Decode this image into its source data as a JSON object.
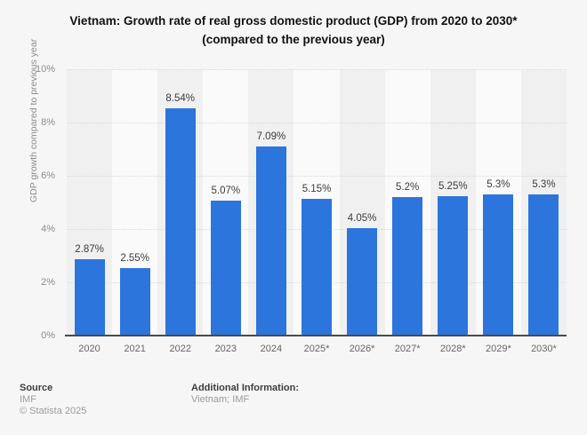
{
  "title": {
    "line1": "Vietnam: Growth rate of real gross domestic product (GDP) from 2020 to 2030*",
    "line2": "(compared to the previous year)"
  },
  "chart_data": {
    "type": "bar",
    "title": "Vietnam: Growth rate of real gross domestic product (GDP) from 2020 to 2030* (compared to the previous year)",
    "categories": [
      "2020",
      "2021",
      "2022",
      "2023",
      "2024",
      "2025*",
      "2026*",
      "2027*",
      "2028*",
      "2029*",
      "2030*"
    ],
    "values": [
      2.87,
      2.55,
      8.54,
      5.07,
      7.09,
      5.15,
      4.05,
      5.2,
      5.25,
      5.3,
      5.3
    ],
    "value_labels": [
      "2.87%",
      "2.55%",
      "8.54%",
      "5.07%",
      "7.09%",
      "5.15%",
      "4.05%",
      "5.2%",
      "5.25%",
      "5.3%",
      "5.3%"
    ],
    "xlabel": "",
    "ylabel": "GDP growth compared to previous year",
    "ylim": [
      0,
      10
    ],
    "yticks": [
      0,
      2,
      4,
      6,
      8,
      10
    ],
    "ytick_labels": [
      "0%",
      "2%",
      "4%",
      "6%",
      "8%",
      "10%"
    ],
    "grid": true,
    "legend": false,
    "bar_color": "#2c75dc"
  },
  "footer": {
    "source_label": "Source",
    "source_value": "IMF",
    "copyright": "© Statista 2025",
    "additional_label": "Additional Information:",
    "additional_value": "Vietnam; IMF"
  }
}
